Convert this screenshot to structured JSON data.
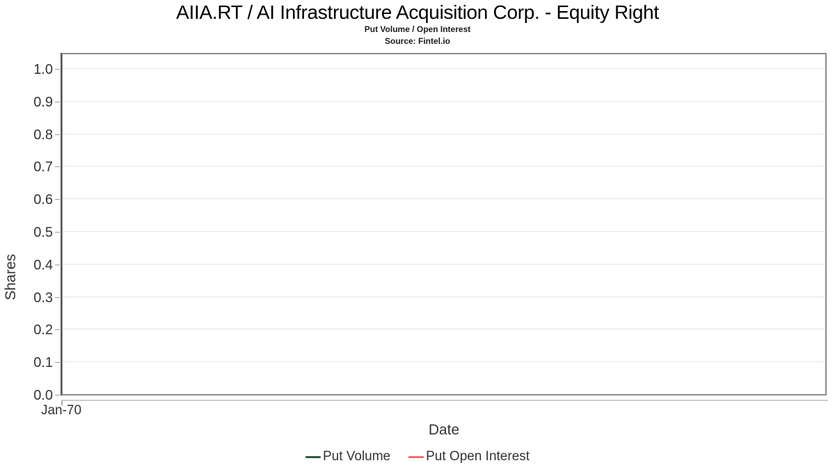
{
  "header": {
    "title": "AIIA.RT / AI Infrastructure Acquisition Corp. - Equity Right",
    "subtitle": "Put Volume / Open Interest",
    "source": "Source: Fintel.io"
  },
  "axes": {
    "y_label": "Shares",
    "x_label": "Date",
    "y_ticks": [
      "1.0",
      "0.9",
      "0.8",
      "0.7",
      "0.6",
      "0.5",
      "0.4",
      "0.3",
      "0.2",
      "0.1",
      "0.0"
    ],
    "x_ticks": [
      "Jan-70"
    ]
  },
  "legend": {
    "items": [
      {
        "label": "Put Volume",
        "color": "#2e5c3f"
      },
      {
        "label": "Put Open Interest",
        "color": "#f96c6c"
      }
    ]
  },
  "colors": {
    "gridline": "#e6e6e6",
    "plot_border": "#8c8c8c",
    "y_axis_line": "#555555",
    "x_axis_line": "#cbcbcb",
    "tick_text": "#333333",
    "title_text": "#000000"
  },
  "chart_data": {
    "type": "line",
    "title": "AIIA.RT / AI Infrastructure Acquisition Corp. - Equity Right",
    "subtitle": "Put Volume / Open Interest",
    "source": "Source: Fintel.io",
    "xlabel": "Date",
    "ylabel": "Shares",
    "ylim": [
      0.0,
      1.05
    ],
    "yticks": [
      0.0,
      0.1,
      0.2,
      0.3,
      0.4,
      0.5,
      0.6,
      0.7,
      0.8,
      0.9,
      1.0
    ],
    "xticks": [
      "Jan-70"
    ],
    "grid": "horizontal",
    "legend_position": "bottom-center",
    "series": [
      {
        "name": "Put Volume",
        "color": "#2e5c3f",
        "x": [],
        "values": []
      },
      {
        "name": "Put Open Interest",
        "color": "#f96c6c",
        "x": [],
        "values": []
      }
    ],
    "note": "empty chart - no data points plotted"
  }
}
